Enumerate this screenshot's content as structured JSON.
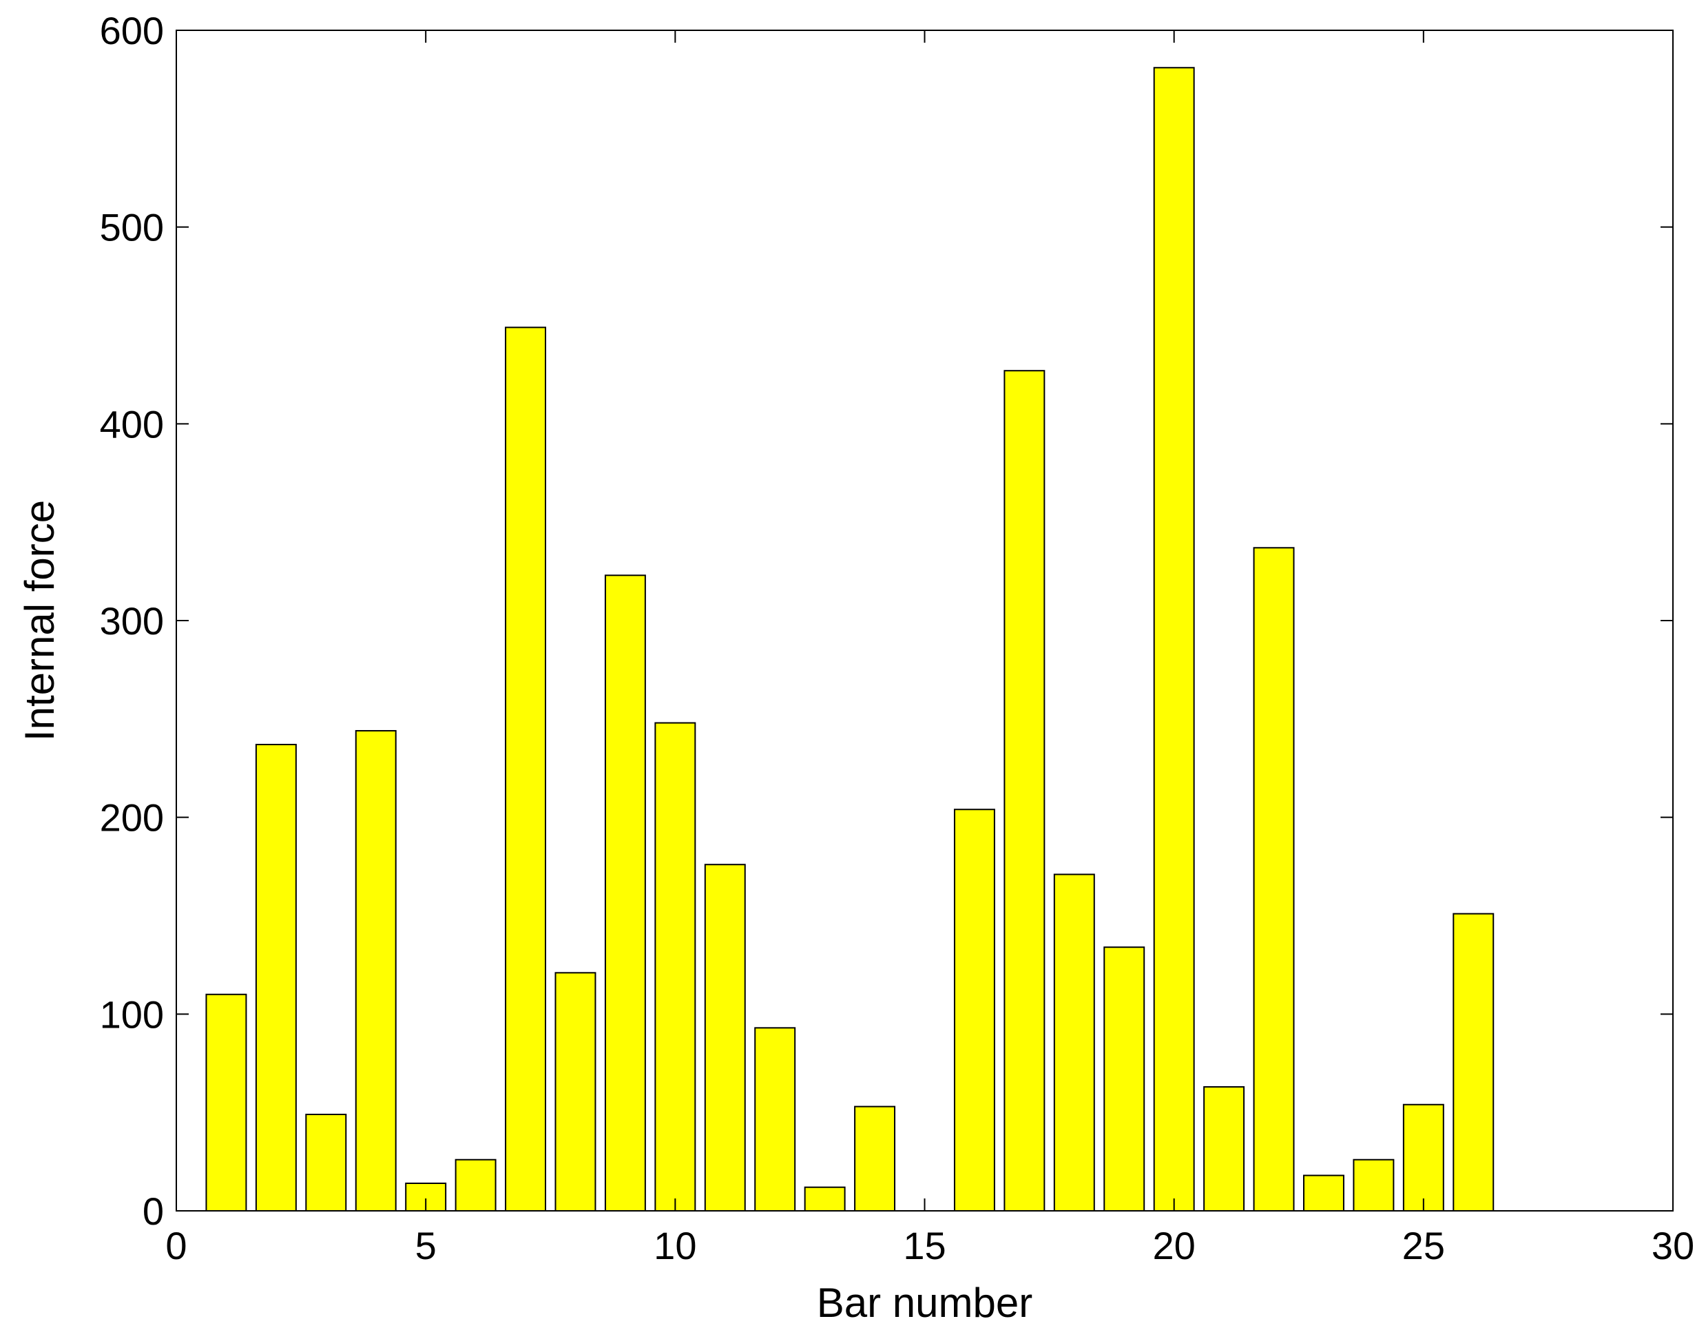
{
  "chart_data": {
    "type": "bar",
    "title": "",
    "xlabel": "Bar number",
    "ylabel": "Internal force",
    "xlim": [
      0,
      30
    ],
    "ylim": [
      0,
      600
    ],
    "xticks": [
      0,
      5,
      10,
      15,
      20,
      25,
      30
    ],
    "yticks": [
      0,
      100,
      200,
      300,
      400,
      500,
      600
    ],
    "grid": false,
    "legend": "none",
    "bar_color": "#ffff00",
    "edge_color": "#000000",
    "x": [
      1,
      2,
      3,
      4,
      5,
      6,
      7,
      8,
      9,
      10,
      11,
      12,
      13,
      14,
      15,
      16,
      17,
      18,
      19,
      20,
      21,
      22,
      23,
      24,
      25,
      26
    ],
    "values": [
      110,
      237,
      49,
      244,
      14,
      26,
      449,
      121,
      323,
      248,
      176,
      93,
      12,
      53,
      0,
      204,
      427,
      171,
      134,
      581,
      63,
      337,
      18,
      26,
      54,
      151
    ]
  }
}
